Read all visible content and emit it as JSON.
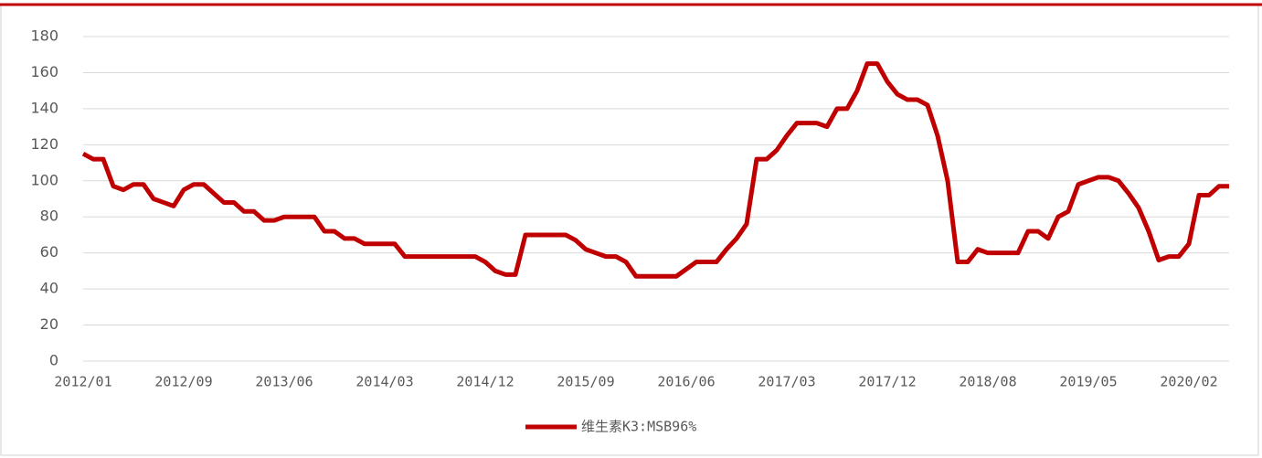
{
  "chart_data": {
    "type": "line",
    "categories": [
      "2012/01",
      null,
      null,
      null,
      null,
      null,
      null,
      null,
      null,
      null,
      "2012/09",
      null,
      null,
      null,
      null,
      null,
      null,
      null,
      null,
      null,
      "2013/06",
      null,
      null,
      null,
      null,
      null,
      null,
      null,
      null,
      null,
      "2014/03",
      null,
      null,
      null,
      null,
      null,
      null,
      null,
      null,
      null,
      "2014/12",
      null,
      null,
      null,
      null,
      null,
      null,
      null,
      null,
      null,
      "2015/09",
      null,
      null,
      null,
      null,
      null,
      null,
      null,
      null,
      null,
      "2016/06",
      null,
      null,
      null,
      null,
      null,
      null,
      null,
      null,
      null,
      "2017/03",
      null,
      null,
      null,
      null,
      null,
      null,
      null,
      null,
      null,
      "2017/12",
      null,
      null,
      null,
      null,
      null,
      null,
      null,
      null,
      null,
      "2018/08",
      null,
      null,
      null,
      null,
      null,
      null,
      null,
      null,
      null,
      "2019/05",
      null,
      null,
      null,
      null,
      null,
      null,
      null,
      null,
      null,
      "2020/02",
      null,
      null,
      null,
      null
    ],
    "series": [
      {
        "name": "维生素K3:MSB96%",
        "color": "#c00000",
        "values": [
          115,
          112,
          112,
          97,
          95,
          98,
          98,
          90,
          88,
          86,
          95,
          98,
          98,
          93,
          88,
          88,
          83,
          83,
          78,
          78,
          80,
          80,
          80,
          80,
          72,
          72,
          68,
          68,
          65,
          65,
          65,
          65,
          58,
          58,
          58,
          58,
          58,
          58,
          58,
          58,
          55,
          50,
          48,
          48,
          70,
          70,
          70,
          70,
          70,
          67,
          62,
          60,
          58,
          58,
          55,
          47,
          47,
          47,
          47,
          47,
          51,
          55,
          55,
          55,
          62,
          68,
          76,
          112,
          112,
          117,
          125,
          132,
          132,
          132,
          130,
          140,
          140,
          150,
          165,
          165,
          155,
          148,
          145,
          145,
          142,
          125,
          100,
          55,
          55,
          62,
          60,
          60,
          60,
          60,
          72,
          72,
          68,
          80,
          83,
          98,
          100,
          102,
          102,
          100,
          93,
          85,
          72,
          56,
          58,
          58,
          65,
          92,
          92,
          97,
          97
        ]
      }
    ],
    "ylim": [
      0,
      180
    ],
    "yticks": [
      0,
      20,
      40,
      60,
      80,
      100,
      120,
      140,
      160,
      180
    ],
    "grid": true,
    "legend": "bottom"
  }
}
